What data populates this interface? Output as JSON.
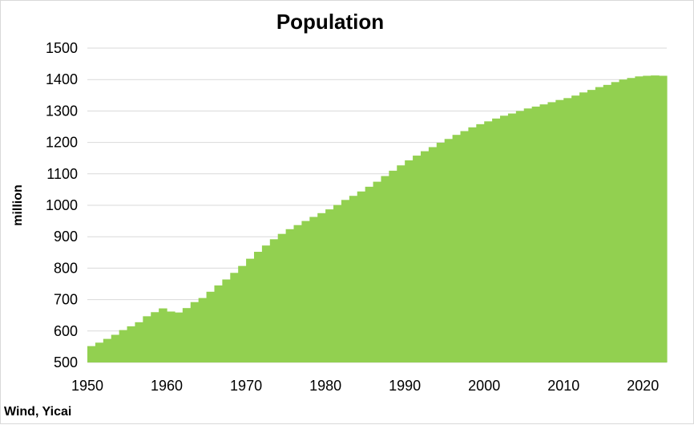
{
  "chart_data": {
    "type": "bar",
    "title": "Population",
    "xlabel": "",
    "ylabel": "million",
    "source": "Wind, Yicai",
    "ylim": [
      500,
      1500
    ],
    "y_ticks": [
      "500",
      "600",
      "700",
      "800",
      "900",
      "1000",
      "1100",
      "1200",
      "1300",
      "1400",
      "1500"
    ],
    "x_ticks": [
      "1950",
      "1960",
      "1970",
      "1980",
      "1990",
      "2000",
      "2010",
      "2020"
    ],
    "grid": true,
    "legend": "none",
    "bar_color": "#92D050",
    "categories": [
      "1950",
      "1951",
      "1952",
      "1953",
      "1954",
      "1955",
      "1956",
      "1957",
      "1958",
      "1959",
      "1960",
      "1961",
      "1962",
      "1963",
      "1964",
      "1965",
      "1966",
      "1967",
      "1968",
      "1969",
      "1970",
      "1971",
      "1972",
      "1973",
      "1974",
      "1975",
      "1976",
      "1977",
      "1978",
      "1979",
      "1980",
      "1981",
      "1982",
      "1983",
      "1984",
      "1985",
      "1986",
      "1987",
      "1988",
      "1989",
      "1990",
      "1991",
      "1992",
      "1993",
      "1994",
      "1995",
      "1996",
      "1997",
      "1998",
      "1999",
      "2000",
      "2001",
      "2002",
      "2003",
      "2004",
      "2005",
      "2006",
      "2007",
      "2008",
      "2009",
      "2010",
      "2011",
      "2012",
      "2013",
      "2014",
      "2015",
      "2016",
      "2017",
      "2018",
      "2019",
      "2020",
      "2021",
      "2022"
    ],
    "values": [
      552,
      563,
      575,
      588,
      603,
      615,
      628,
      647,
      660,
      672,
      662,
      659,
      673,
      692,
      705,
      725,
      745,
      764,
      785,
      807,
      830,
      852,
      872,
      892,
      909,
      924,
      937,
      950,
      963,
      975,
      987,
      1001,
      1017,
      1030,
      1044,
      1059,
      1075,
      1093,
      1110,
      1127,
      1143,
      1158,
      1172,
      1185,
      1199,
      1211,
      1224,
      1236,
      1248,
      1258,
      1267,
      1276,
      1285,
      1292,
      1300,
      1308,
      1314,
      1321,
      1328,
      1335,
      1341,
      1349,
      1359,
      1367,
      1376,
      1383,
      1392,
      1400,
      1405,
      1410,
      1412,
      1413,
      1412
    ]
  }
}
